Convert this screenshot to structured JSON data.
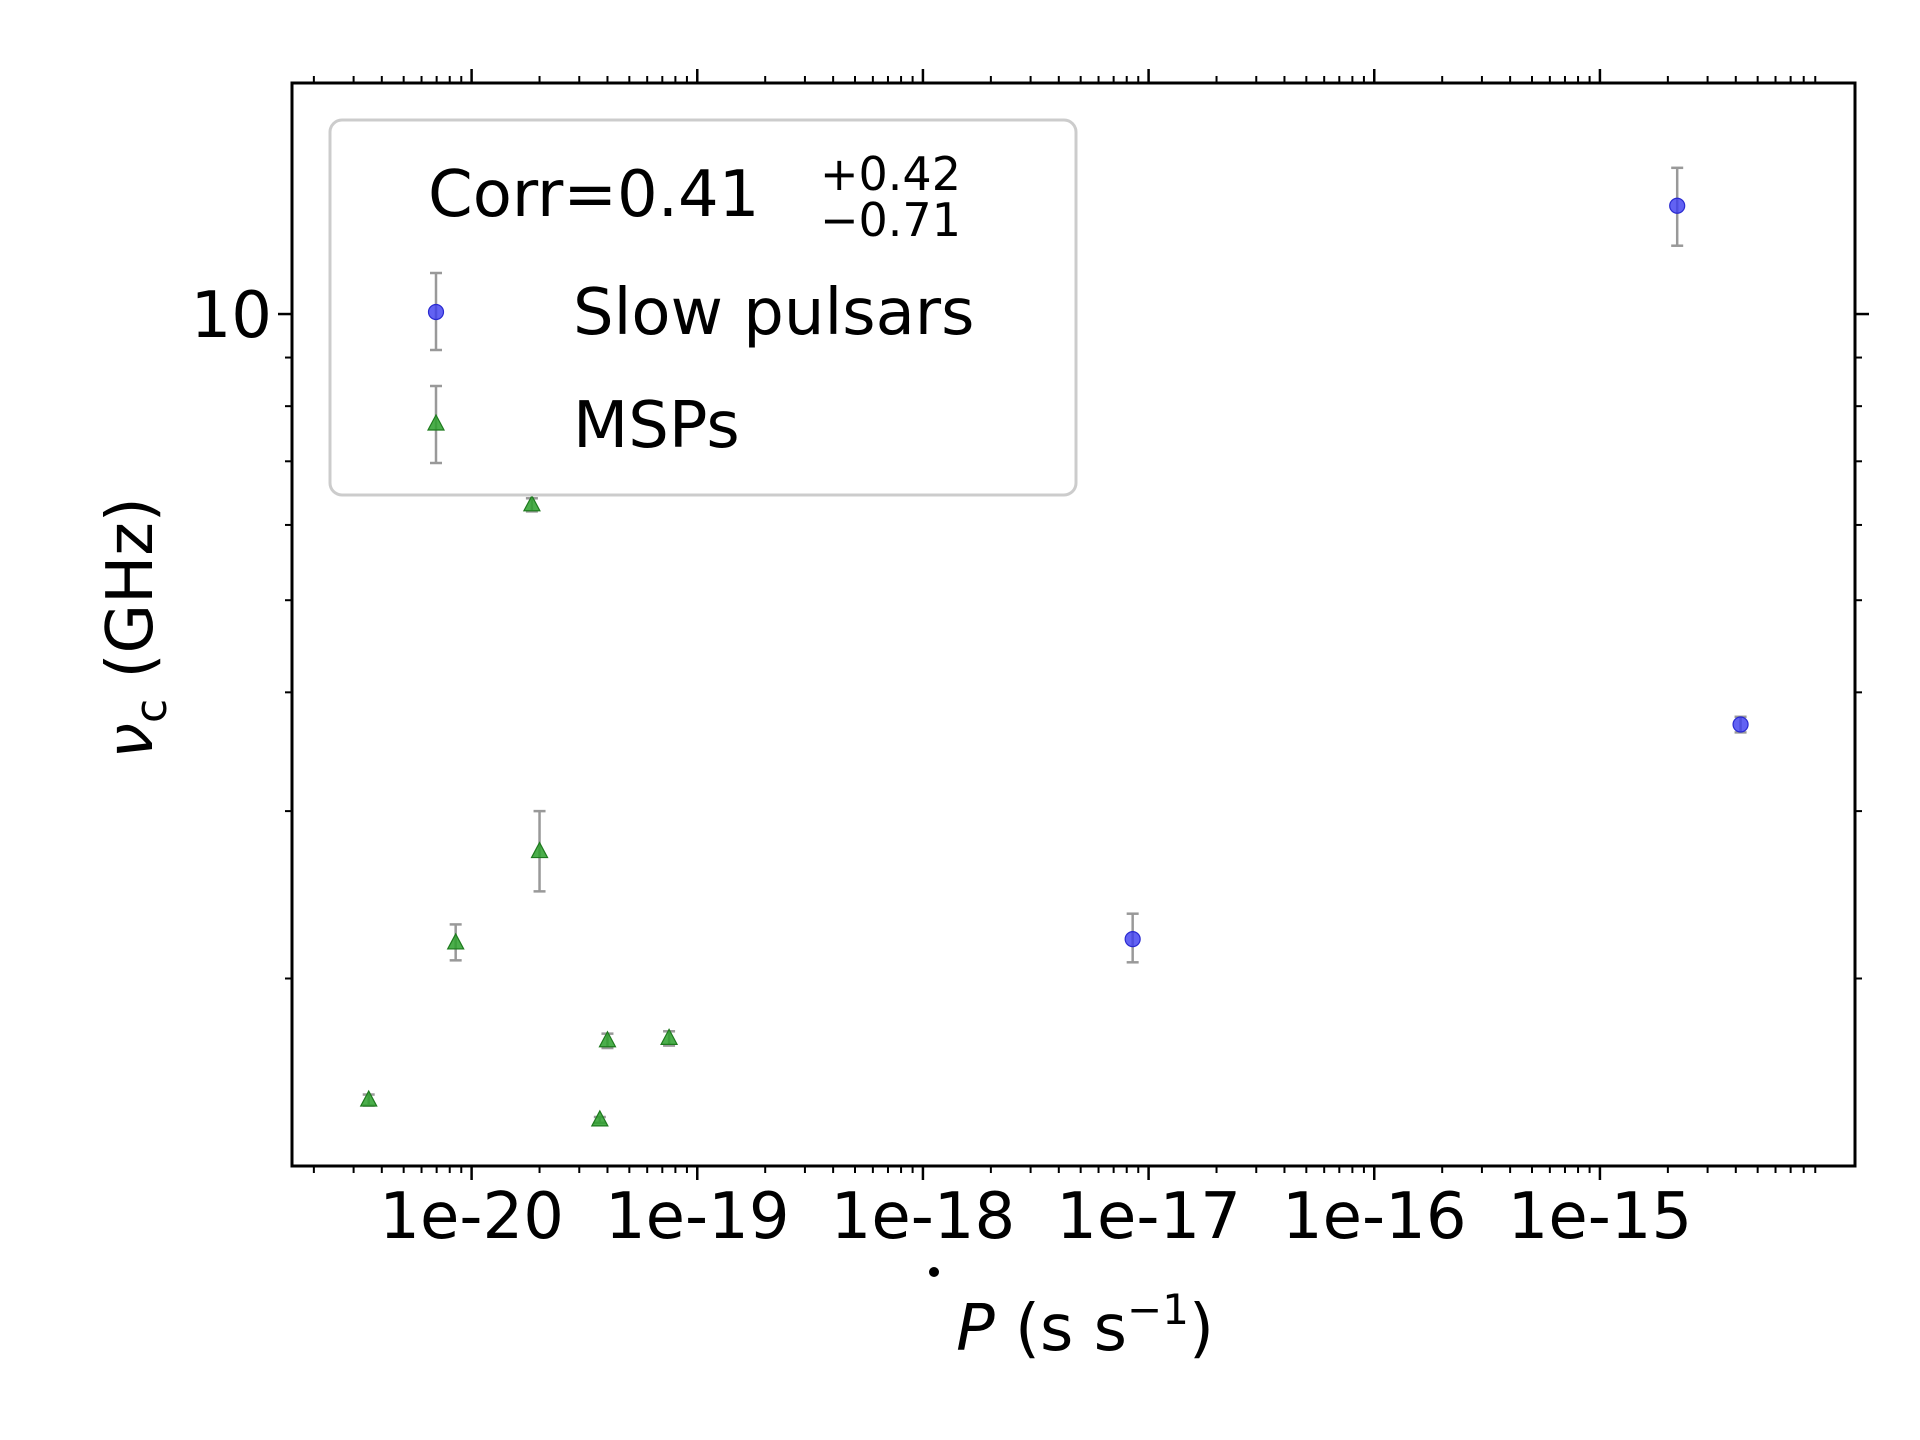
{
  "chart_data": {
    "type": "scatter",
    "title": "",
    "xlabel": "Ṗ (s s⁻¹)",
    "ylabel": "νc (GHz)",
    "xscale": "log",
    "yscale": "log",
    "xlim": [
      1.6e-21,
      1.35e-14
    ],
    "ylim": [
      1.27,
      17.5
    ],
    "x_tick_labels": [
      "1e-20",
      "1e-19",
      "1e-18",
      "1e-17",
      "1e-16",
      "1e-15"
    ],
    "x_ticks": [
      1e-20,
      1e-19,
      1e-18,
      1e-17,
      1e-16,
      1e-15
    ],
    "y_tick_labels": [
      "10"
    ],
    "y_ticks": [
      10
    ],
    "legend": {
      "placement": "upper left",
      "title": "Corr=0.41",
      "title_sup": "+0.42",
      "title_sub": "−0.71",
      "entries": [
        "Slow pulsars",
        "MSPs"
      ]
    },
    "series": [
      {
        "name": "Slow pulsars",
        "marker": "circle",
        "color": "#3b3bf0",
        "points": [
          {
            "x": 8.5e-18,
            "y": 2.2,
            "yerr_low": 0.12,
            "yerr_high": 0.14
          },
          {
            "x": 2.2e-15,
            "y": 13.0,
            "yerr_low": 1.2,
            "yerr_high": 1.25
          },
          {
            "x": 4.2e-15,
            "y": 3.7,
            "yerr_low": 0.07,
            "yerr_high": 0.07
          }
        ]
      },
      {
        "name": "MSPs",
        "marker": "triangle",
        "color": "#2ca02c",
        "points": [
          {
            "x": 3.5e-21,
            "y": 1.49,
            "yerr_low": 0.02,
            "yerr_high": 0.02
          },
          {
            "x": 8.5e-21,
            "y": 2.18,
            "yerr_low": 0.09,
            "yerr_high": 0.1
          },
          {
            "x": 1.85e-20,
            "y": 6.3,
            "yerr_low": 0.1,
            "yerr_high": 0.1
          },
          {
            "x": 2e-20,
            "y": 2.72,
            "yerr_low": 0.25,
            "yerr_high": 0.28
          },
          {
            "x": 3.7e-20,
            "y": 1.42,
            "yerr_low": 0.01,
            "yerr_high": 0.01
          },
          {
            "x": 4e-20,
            "y": 1.72,
            "yerr_low": 0.03,
            "yerr_high": 0.03
          },
          {
            "x": 7.5e-20,
            "y": 1.73,
            "yerr_low": 0.03,
            "yerr_high": 0.03
          }
        ]
      }
    ],
    "error_bar_color": "#999999"
  }
}
